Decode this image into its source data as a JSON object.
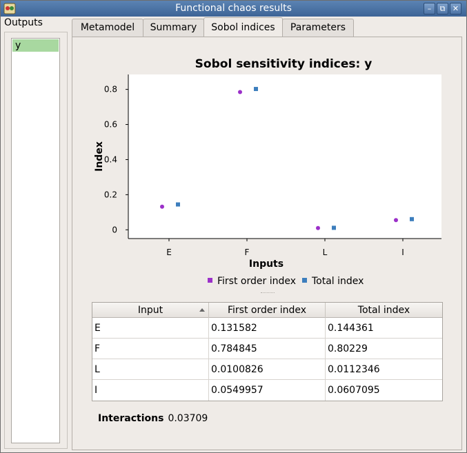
{
  "window": {
    "title": "Functional chaos results"
  },
  "outputs": {
    "label": "Outputs",
    "items": [
      "y"
    ]
  },
  "tabs": [
    {
      "label": "Metamodel"
    },
    {
      "label": "Summary"
    },
    {
      "label": "Sobol indices"
    },
    {
      "label": "Parameters"
    }
  ],
  "chart_data": {
    "type": "scatter",
    "title": "Sobol sensitivity indices: y",
    "xlabel": "Inputs",
    "ylabel": "Index",
    "categories": [
      "E",
      "F",
      "L",
      "I"
    ],
    "y_ticks": [
      "0",
      "0.2",
      "0.4",
      "0.6",
      "0.8"
    ],
    "ylim": [
      -0.05,
      0.885
    ],
    "grid": false,
    "legend_position": "bottom",
    "series": [
      {
        "name": "First order index",
        "color": "#9b30c9",
        "marker": "circle",
        "values": [
          0.131582,
          0.784845,
          0.0100826,
          0.0549957
        ]
      },
      {
        "name": "Total index",
        "color": "#3d7ebd",
        "marker": "square",
        "values": [
          0.144361,
          0.80229,
          0.0112346,
          0.0607095
        ]
      }
    ]
  },
  "table": {
    "headers": [
      "Input",
      "First order index",
      "Total index"
    ],
    "rows": [
      [
        "E",
        "0.131582",
        "0.144361"
      ],
      [
        "F",
        "0.784845",
        "0.80229"
      ],
      [
        "L",
        "0.0100826",
        "0.0112346"
      ],
      [
        "I",
        "0.0549957",
        "0.0607095"
      ]
    ]
  },
  "interactions": {
    "label": "Interactions",
    "value": "0.03709"
  }
}
